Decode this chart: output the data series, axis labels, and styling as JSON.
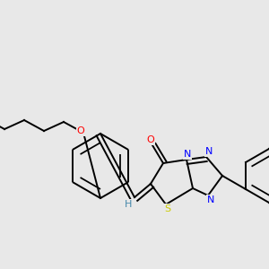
{
  "background_color": "#e8e8e8",
  "bond_color": "#000000",
  "atom_colors": {
    "O": "#ff0000",
    "S": "#cccc00",
    "N": "#0000ff",
    "H": "#4488aa",
    "C": "#000000"
  },
  "figsize": [
    3.0,
    3.0
  ],
  "dpi": 100
}
